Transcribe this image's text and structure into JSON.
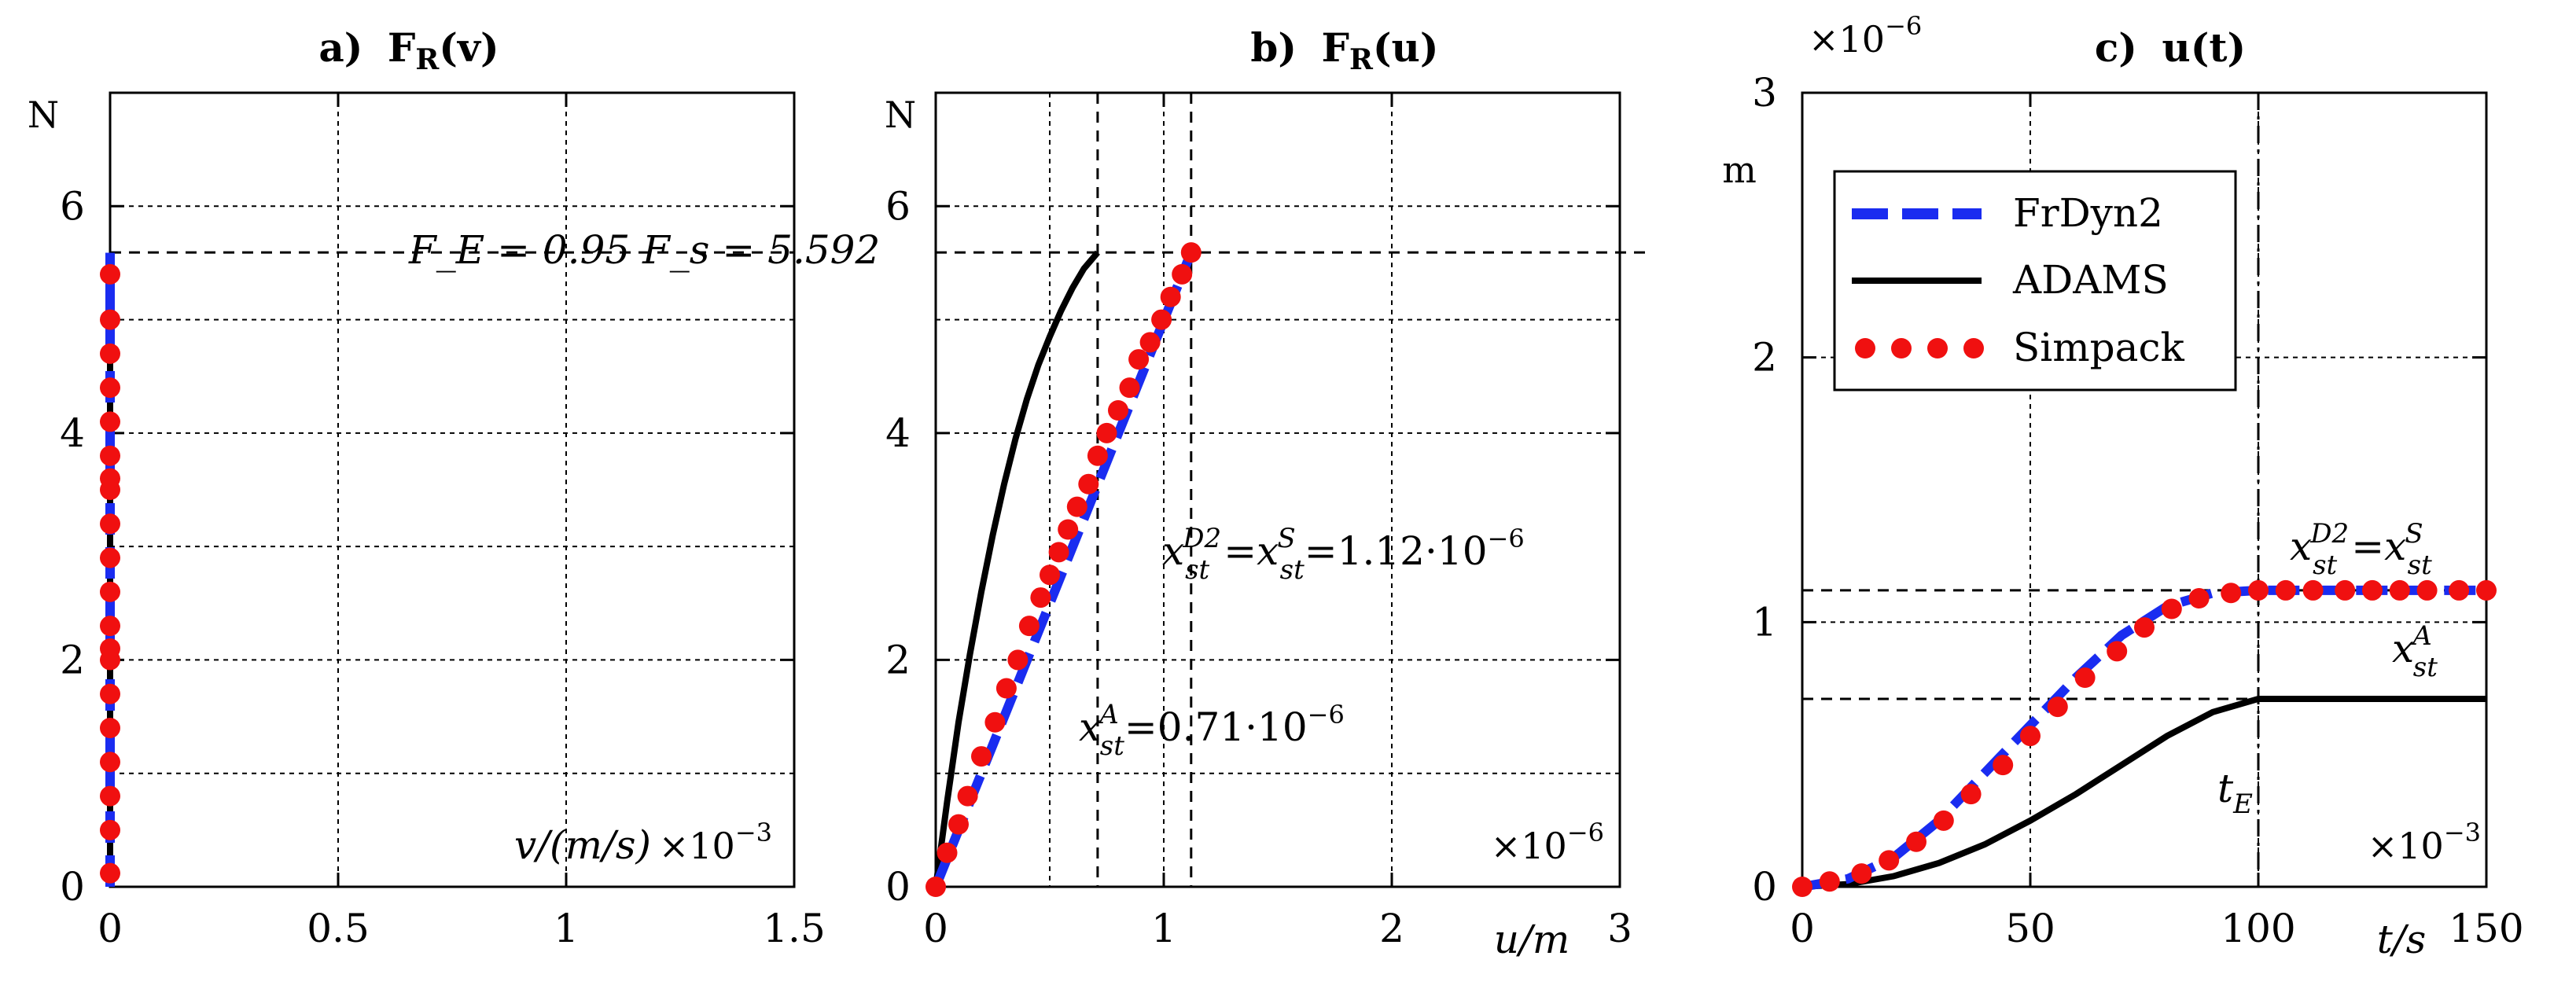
{
  "chart_data": [
    {
      "panel": "a",
      "type": "line",
      "title_prefix": "a)",
      "title_main": "F",
      "title_sub": "R",
      "title_arg": "(v)",
      "xlim": [
        0,
        1.5
      ],
      "ylim": [
        0,
        7
      ],
      "x_ticks": [
        0,
        0.5,
        1,
        1.5
      ],
      "x_tick_labels": [
        "0",
        "0.5",
        "1",
        "1.5"
      ],
      "y_ticks": [
        0,
        2,
        4,
        6
      ],
      "y_tick_labels": [
        "0",
        "2",
        "4",
        "6"
      ],
      "extra_gridlines_x": [
        1
      ],
      "extra_gridlines_y": [
        1,
        3,
        5
      ],
      "y_unit": "N",
      "x_axis_label": "v/(m/s)",
      "x_exponent": "×10",
      "x_exponent_power": "−3",
      "grid": true,
      "series": [
        {
          "name": "FrDyn2",
          "x": [
            0,
            0,
            0,
            0
          ],
          "y": [
            0,
            2,
            4,
            5.59
          ]
        },
        {
          "name": "ADAMS",
          "x": [
            0,
            0,
            0,
            0
          ],
          "y": [
            0,
            2,
            4,
            5.59
          ]
        },
        {
          "name": "Simpack",
          "x": [
            0,
            0,
            0,
            0,
            0,
            0,
            0,
            0,
            0,
            0,
            0,
            0,
            0,
            0,
            0,
            0,
            0,
            0,
            0,
            0
          ],
          "y": [
            0.12,
            0.8,
            1.1,
            1.4,
            1.7,
            2.0,
            2.3,
            2.6,
            2.9,
            3.2,
            3.5,
            3.8,
            4.1,
            4.4,
            4.7,
            5.0,
            5.4,
            0.5,
            2.1,
            3.6
          ]
        }
      ],
      "hline": {
        "y": 5.592,
        "label": "F_E = 0.95 F_s = 5.592"
      }
    },
    {
      "panel": "b",
      "type": "line",
      "title_prefix": "b)",
      "title_main": "F",
      "title_sub": "R",
      "title_arg": "(u)",
      "xlim": [
        0,
        3
      ],
      "ylim": [
        0,
        7
      ],
      "x_ticks": [
        0,
        1,
        2,
        3
      ],
      "x_tick_labels": [
        "0",
        "1",
        "2",
        "3"
      ],
      "y_ticks": [
        0,
        2,
        4,
        6
      ],
      "y_tick_labels": [
        "0",
        "2",
        "4",
        "6"
      ],
      "extra_gridlines_x": [
        0.5
      ],
      "extra_gridlines_y": [
        1,
        5
      ],
      "y_unit": "N",
      "x_axis_label": "u/m",
      "x_exponent": "×10",
      "x_exponent_power": "−6",
      "grid": true,
      "series": [
        {
          "name": "FrDyn2",
          "x": [
            0,
            1.12
          ],
          "y": [
            0,
            5.592
          ]
        },
        {
          "name": "ADAMS",
          "x": [
            0,
            0.05,
            0.1,
            0.15,
            0.2,
            0.25,
            0.3,
            0.35,
            0.4,
            0.45,
            0.5,
            0.55,
            0.6,
            0.65,
            0.71
          ],
          "y": [
            0,
            0.75,
            1.45,
            2.05,
            2.6,
            3.1,
            3.55,
            3.95,
            4.3,
            4.6,
            4.85,
            5.08,
            5.28,
            5.45,
            5.592
          ]
        },
        {
          "name": "Simpack",
          "x": [
            0,
            0.05,
            0.1,
            0.14,
            0.2,
            0.26,
            0.31,
            0.36,
            0.41,
            0.46,
            0.5,
            0.54,
            0.58,
            0.62,
            0.67,
            0.71,
            0.75,
            0.8,
            0.85,
            0.89,
            0.94,
            0.99,
            1.03,
            1.08,
            1.12
          ],
          "y": [
            0,
            0.3,
            0.55,
            0.8,
            1.15,
            1.45,
            1.75,
            2.0,
            2.3,
            2.55,
            2.75,
            2.95,
            3.15,
            3.35,
            3.55,
            3.8,
            4.0,
            4.2,
            4.4,
            4.65,
            4.8,
            5.0,
            5.2,
            5.4,
            5.592
          ]
        }
      ],
      "hline": {
        "y": 5.592
      },
      "vlines": [
        0.71,
        1.12
      ],
      "annotations": [
        {
          "text_base": "x",
          "sup": "D2",
          "sub": "st",
          "eq": "=",
          "text_base2": "x",
          "sup2": "S",
          "sub2": "st",
          "value": "=1.12·10",
          "value_power": "−6"
        },
        {
          "text_base": "x",
          "sup": "A",
          "sub": "st",
          "value": "=0.71·10",
          "value_power": "−6"
        }
      ]
    },
    {
      "panel": "c",
      "type": "line",
      "title_prefix": "c)",
      "title_main": "u",
      "title_arg": "(t)",
      "xlim": [
        0,
        150
      ],
      "ylim": [
        0,
        3
      ],
      "x_ticks": [
        0,
        50,
        100,
        150
      ],
      "x_tick_labels": [
        "0",
        "50",
        "100",
        "150"
      ],
      "y_ticks": [
        0,
        1,
        2,
        3
      ],
      "y_tick_labels": [
        "0",
        "1",
        "2",
        "3"
      ],
      "y_unit": "m",
      "y_exponent": "×10",
      "y_exponent_power": "−6",
      "x_axis_label": "t/s",
      "x_exponent": "×10",
      "x_exponent_power": "−3",
      "grid": true,
      "series": [
        {
          "name": "FrDyn2",
          "x": [
            0,
            10,
            20,
            30,
            40,
            50,
            60,
            70,
            80,
            90,
            100,
            110,
            120,
            130,
            140,
            150
          ],
          "y": [
            0,
            0.03,
            0.11,
            0.25,
            0.43,
            0.61,
            0.79,
            0.95,
            1.06,
            1.11,
            1.12,
            1.12,
            1.12,
            1.12,
            1.12,
            1.12
          ]
        },
        {
          "name": "ADAMS",
          "x": [
            0,
            10,
            20,
            30,
            40,
            50,
            60,
            70,
            80,
            90,
            100,
            110,
            120,
            130,
            140,
            150
          ],
          "y": [
            0,
            0.01,
            0.04,
            0.09,
            0.16,
            0.25,
            0.35,
            0.46,
            0.57,
            0.66,
            0.71,
            0.71,
            0.71,
            0.71,
            0.71,
            0.71
          ]
        },
        {
          "name": "Simpack",
          "x": [
            0,
            6,
            13,
            19,
            25,
            31,
            37,
            44,
            50,
            56,
            62,
            69,
            75,
            81,
            87,
            94,
            100,
            106,
            112,
            119,
            125,
            131,
            137,
            144,
            150
          ],
          "y": [
            0,
            0.02,
            0.05,
            0.1,
            0.17,
            0.25,
            0.35,
            0.46,
            0.57,
            0.68,
            0.79,
            0.89,
            0.98,
            1.05,
            1.09,
            1.11,
            1.12,
            1.12,
            1.12,
            1.12,
            1.12,
            1.12,
            1.12,
            1.12,
            1.12
          ]
        }
      ],
      "hlines": [
        1.12,
        0.71
      ],
      "vline": 100,
      "annotations": [
        {
          "text_base": "x",
          "sup": "D2",
          "sub": "st",
          "eq": "=",
          "text_base2": "x",
          "sup2": "S",
          "sub2": "st"
        },
        {
          "text_base": "x",
          "sup": "A",
          "sub": "st"
        },
        {
          "text_base": "t",
          "sub": "E"
        }
      ],
      "legend": {
        "position": "top-left",
        "items": [
          "FrDyn2",
          "ADAMS",
          "Simpack"
        ]
      }
    }
  ],
  "colors": {
    "FrDyn2": "#1a2cf0",
    "ADAMS": "#000000",
    "Simpack": "#f01010"
  }
}
